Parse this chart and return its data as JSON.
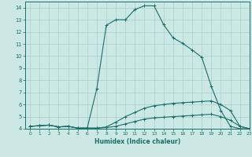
{
  "title": "",
  "xlabel": "Humidex (Indice chaleur)",
  "bg_color": "#cce8e4",
  "grid_color": "#a8d0cc",
  "line_color": "#1a6e6a",
  "xlim": [
    -0.5,
    23
  ],
  "ylim": [
    4,
    14.5
  ],
  "yticks": [
    4,
    5,
    6,
    7,
    8,
    9,
    10,
    11,
    12,
    13,
    14
  ],
  "xticks": [
    0,
    1,
    2,
    3,
    4,
    5,
    6,
    7,
    8,
    9,
    10,
    11,
    12,
    13,
    14,
    15,
    16,
    17,
    18,
    19,
    20,
    21,
    22,
    23
  ],
  "lines": [
    {
      "x": [
        0,
        1,
        2,
        3,
        4,
        5,
        6,
        7,
        8,
        9,
        10,
        11,
        12,
        13,
        14,
        15,
        16,
        17,
        18,
        19,
        20,
        21,
        22,
        23
      ],
      "y": [
        4.2,
        4.25,
        4.3,
        4.15,
        4.2,
        4.05,
        4.05,
        7.3,
        12.55,
        13.0,
        13.0,
        13.85,
        14.15,
        14.15,
        12.6,
        11.5,
        11.05,
        10.5,
        9.9,
        7.5,
        5.5,
        4.2,
        4.0,
        4.0
      ]
    },
    {
      "x": [
        0,
        1,
        2,
        3,
        4,
        5,
        6,
        7,
        8,
        9,
        10,
        11,
        12,
        13,
        14,
        15,
        16,
        17,
        18,
        19,
        20,
        21,
        22,
        23
      ],
      "y": [
        4.2,
        4.25,
        4.3,
        4.15,
        4.2,
        4.05,
        4.05,
        4.05,
        4.15,
        4.55,
        5.0,
        5.35,
        5.7,
        5.9,
        6.0,
        6.1,
        6.15,
        6.2,
        6.25,
        6.3,
        6.0,
        5.5,
        4.2,
        4.0
      ]
    },
    {
      "x": [
        0,
        1,
        2,
        3,
        4,
        5,
        6,
        7,
        8,
        9,
        10,
        11,
        12,
        13,
        14,
        15,
        16,
        17,
        18,
        19,
        20,
        21,
        22,
        23
      ],
      "y": [
        4.2,
        4.25,
        4.3,
        4.15,
        4.2,
        4.05,
        4.05,
        4.05,
        4.1,
        4.2,
        4.4,
        4.6,
        4.8,
        4.9,
        4.95,
        5.0,
        5.05,
        5.1,
        5.15,
        5.2,
        5.0,
        4.7,
        4.2,
        4.0
      ]
    }
  ]
}
